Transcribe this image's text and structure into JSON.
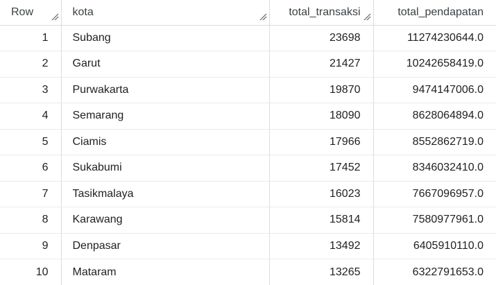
{
  "table": {
    "columns": [
      {
        "label": "Row"
      },
      {
        "label": "kota"
      },
      {
        "label": "total_transaksi"
      },
      {
        "label": "total_pendapatan"
      }
    ],
    "rows": [
      {
        "row": "1",
        "kota": "Subang",
        "total_transaksi": "23698",
        "total_pendapatan": "11274230644.0"
      },
      {
        "row": "2",
        "kota": "Garut",
        "total_transaksi": "21427",
        "total_pendapatan": "10242658419.0"
      },
      {
        "row": "3",
        "kota": "Purwakarta",
        "total_transaksi": "19870",
        "total_pendapatan": "9474147006.0"
      },
      {
        "row": "4",
        "kota": "Semarang",
        "total_transaksi": "18090",
        "total_pendapatan": "8628064894.0"
      },
      {
        "row": "5",
        "kota": "Ciamis",
        "total_transaksi": "17966",
        "total_pendapatan": "8552862719.0"
      },
      {
        "row": "6",
        "kota": "Sukabumi",
        "total_transaksi": "17452",
        "total_pendapatan": "8346032410.0"
      },
      {
        "row": "7",
        "kota": "Tasikmalaya",
        "total_transaksi": "16023",
        "total_pendapatan": "7667096957.0"
      },
      {
        "row": "8",
        "kota": "Karawang",
        "total_transaksi": "15814",
        "total_pendapatan": "7580977961.0"
      },
      {
        "row": "9",
        "kota": "Denpasar",
        "total_transaksi": "13492",
        "total_pendapatan": "6405910110.0"
      },
      {
        "row": "10",
        "kota": "Mataram",
        "total_transaksi": "13265",
        "total_pendapatan": "6322791653.0"
      }
    ]
  },
  "icons": {
    "column_resize": "column-resize-handle-icon"
  }
}
